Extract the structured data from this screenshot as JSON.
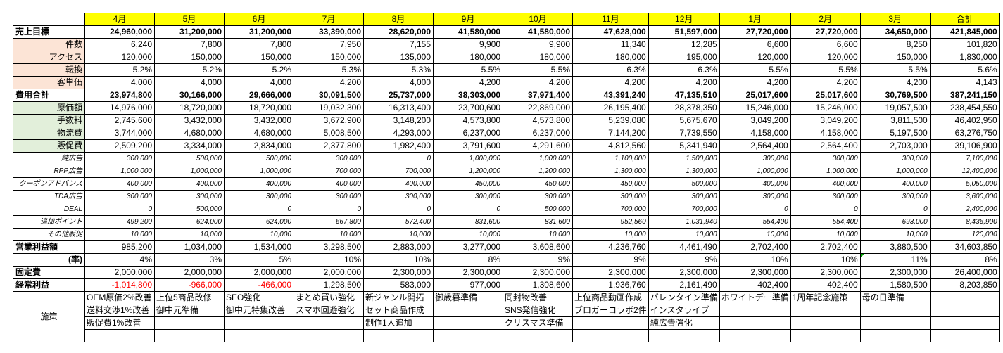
{
  "months": [
    "4月",
    "5月",
    "6月",
    "7月",
    "8月",
    "9月",
    "10月",
    "11月",
    "12月",
    "1月",
    "2月",
    "3月",
    "合計"
  ],
  "sections": [
    {
      "key": "uriage",
      "label": "売上目標",
      "style": "bold",
      "values": [
        "24,960,000",
        "31,200,000",
        "31,200,000",
        "33,390,000",
        "28,620,000",
        "41,580,000",
        "41,580,000",
        "47,628,000",
        "51,597,000",
        "27,720,000",
        "27,720,000",
        "34,650,000",
        "421,845,000"
      ]
    },
    {
      "key": "kensu",
      "label": "件数",
      "style": "sub",
      "values": [
        "6,240",
        "7,800",
        "7,800",
        "7,950",
        "7,155",
        "9,900",
        "9,900",
        "11,340",
        "12,285",
        "6,600",
        "6,600",
        "8,250",
        "101,820"
      ]
    },
    {
      "key": "access",
      "label": "アクセス",
      "style": "sub",
      "values": [
        "120,000",
        "150,000",
        "150,000",
        "150,000",
        "135,000",
        "180,000",
        "180,000",
        "180,000",
        "195,000",
        "120,000",
        "120,000",
        "150,000",
        "1,830,000"
      ]
    },
    {
      "key": "tenkan",
      "label": "転換",
      "style": "sub",
      "values": [
        "5.2%",
        "5.2%",
        "5.2%",
        "5.3%",
        "5.3%",
        "5.5%",
        "5.5%",
        "6.3%",
        "6.3%",
        "5.5%",
        "5.5%",
        "5.5%",
        "5.6%"
      ]
    },
    {
      "key": "kyakutanka",
      "label": "客単価",
      "style": "sub",
      "values": [
        "4,000",
        "4,000",
        "4,000",
        "4,200",
        "4,000",
        "4,200",
        "4,200",
        "4,200",
        "4,200",
        "4,200",
        "4,200",
        "4,200",
        "4,143"
      ]
    },
    {
      "key": "hiyou",
      "label": "費用合計",
      "style": "bold",
      "values": [
        "23,974,800",
        "30,166,000",
        "29,666,000",
        "30,091,500",
        "25,737,000",
        "38,303,000",
        "37,971,400",
        "43,391,240",
        "47,135,510",
        "25,017,600",
        "25,017,600",
        "30,769,500",
        "387,241,150"
      ]
    },
    {
      "key": "genka",
      "label": "原価額",
      "style": "subg",
      "values": [
        "14,976,000",
        "18,720,000",
        "18,720,000",
        "19,032,300",
        "16,313,400",
        "23,700,600",
        "22,869,000",
        "26,195,400",
        "28,378,350",
        "15,246,000",
        "15,246,000",
        "19,057,500",
        "238,454,550"
      ]
    },
    {
      "key": "tesuryo",
      "label": "手数料",
      "style": "subg",
      "values": [
        "2,745,600",
        "3,432,000",
        "3,432,000",
        "3,672,900",
        "3,148,200",
        "4,573,800",
        "4,573,800",
        "5,239,080",
        "5,675,670",
        "3,049,200",
        "3,049,200",
        "3,811,500",
        "46,402,950"
      ]
    },
    {
      "key": "butsuryu",
      "label": "物流費",
      "style": "subg",
      "values": [
        "3,744,000",
        "4,680,000",
        "4,680,000",
        "5,008,500",
        "4,293,000",
        "6,237,000",
        "6,237,000",
        "7,144,200",
        "7,739,550",
        "4,158,000",
        "4,158,000",
        "5,197,500",
        "63,276,750"
      ]
    },
    {
      "key": "hansoku",
      "label": "販促費",
      "style": "subg",
      "values": [
        "2,509,200",
        "3,334,000",
        "2,834,000",
        "2,377,800",
        "1,982,400",
        "3,791,600",
        "4,291,600",
        "4,812,560",
        "5,341,940",
        "2,564,400",
        "2,564,400",
        "2,703,000",
        "39,106,900"
      ]
    },
    {
      "key": "junkoukoku",
      "label": "純広告",
      "style": "sm",
      "values": [
        "300,000",
        "500,000",
        "500,000",
        "300,000",
        "0",
        "1,000,000",
        "1,000,000",
        "1,100,000",
        "1,500,000",
        "300,000",
        "300,000",
        "300,000",
        "7,100,000"
      ]
    },
    {
      "key": "rpp",
      "label": "RPP広告",
      "style": "sm",
      "values": [
        "1,000,000",
        "1,000,000",
        "1,000,000",
        "700,000",
        "700,000",
        "1,200,000",
        "1,200,000",
        "1,300,000",
        "1,300,000",
        "1,000,000",
        "1,000,000",
        "1,000,000",
        "12,400,000"
      ]
    },
    {
      "key": "coupon",
      "label": "クーポンアドバンス",
      "style": "sm",
      "values": [
        "400,000",
        "400,000",
        "400,000",
        "400,000",
        "400,000",
        "450,000",
        "450,000",
        "450,000",
        "500,000",
        "400,000",
        "400,000",
        "400,000",
        "5,050,000"
      ]
    },
    {
      "key": "tda",
      "label": "TDA広告",
      "style": "sm",
      "values": [
        "300,000",
        "300,000",
        "300,000",
        "300,000",
        "300,000",
        "300,000",
        "300,000",
        "300,000",
        "300,000",
        "300,000",
        "300,000",
        "300,000",
        "3,600,000"
      ]
    },
    {
      "key": "deal",
      "label": "DEAL",
      "style": "sm",
      "values": [
        "0",
        "500,000",
        "0",
        "0",
        "0",
        "0",
        "500,000",
        "700,000",
        "700,000",
        "0",
        "0",
        "0",
        "2,400,000"
      ]
    },
    {
      "key": "tsuika",
      "label": "追加ポイント",
      "style": "sm",
      "values": [
        "499,200",
        "624,000",
        "624,000",
        "667,800",
        "572,400",
        "831,600",
        "831,600",
        "952,560",
        "1,031,940",
        "554,400",
        "554,400",
        "693,000",
        "8,436,900"
      ]
    },
    {
      "key": "sonota",
      "label": "その他販促",
      "style": "sm",
      "values": [
        "10,000",
        "10,000",
        "10,000",
        "10,000",
        "10,000",
        "10,000",
        "10,000",
        "10,000",
        "10,000",
        "10,000",
        "10,000",
        "10,000",
        "120,000"
      ]
    },
    {
      "key": "eigyo",
      "label": "営業利益額",
      "style": "boldlabel",
      "values": [
        "985,200",
        "1,034,000",
        "1,534,000",
        "3,298,500",
        "2,883,000",
        "3,277,000",
        "3,608,600",
        "4,236,760",
        "4,461,490",
        "2,702,400",
        "2,702,400",
        "3,880,500",
        "34,603,850"
      ]
    },
    {
      "key": "ritsu",
      "label": "(率)",
      "style": "ratelabel",
      "values": [
        "4%",
        "3%",
        "5%",
        "10%",
        "10%",
        "8%",
        "9%",
        "9%",
        "9%",
        "10%",
        "10%",
        "11%",
        "8%"
      ]
    },
    {
      "key": "kotei",
      "label": "固定費",
      "style": "boldlabel",
      "values": [
        "2,000,000",
        "2,000,000",
        "2,000,000",
        "2,000,000",
        "2,300,000",
        "2,300,000",
        "2,300,000",
        "2,300,000",
        "2,300,000",
        "2,300,000",
        "2,300,000",
        "2,300,000",
        "26,400,000"
      ]
    },
    {
      "key": "keijo",
      "label": "経常利益",
      "style": "boldlabel",
      "values": [
        "-1,014,800",
        "-966,000",
        "-466,000",
        "1,298,500",
        "583,000",
        "977,000",
        "1,308,600",
        "1,936,760",
        "2,161,490",
        "402,400",
        "402,400",
        "1,580,500",
        "8,203,850"
      ]
    }
  ],
  "negative_color": "#ff0000",
  "shisaku": {
    "label": "施策",
    "rows": [
      [
        "OEM原価2%改善",
        "上位5商品改修",
        "SEO強化",
        "まとめ買い強化",
        "新ジャンル開拓",
        "御歳暮準備",
        "同封物改善",
        "上位商品動画作成",
        "バレンタイン準備",
        "ホワイトデー準備",
        "1周年記念施策",
        "母の日準備",
        ""
      ],
      [
        "送料交渉1%改善",
        "御中元準備",
        "御中元特集改善",
        "スマホ回遊強化",
        "セット商品作成",
        "",
        "SNS発信強化",
        "ブロガーコラボ2件",
        "インスタライブ",
        "",
        "",
        "",
        ""
      ],
      [
        "販促費1%改善",
        "",
        "",
        "",
        "制作1人追加",
        "",
        "クリスマス準備",
        "",
        "純広告強化",
        "",
        "",
        "",
        ""
      ],
      [
        "",
        "",
        "",
        "",
        "",
        "",
        "",
        "",
        "",
        "",
        "",
        "",
        ""
      ]
    ]
  },
  "colors": {
    "header_bg": "#ffff00",
    "sales_sub_bg": "#fce4d6",
    "cost_sub_bg": "#e2efda"
  }
}
